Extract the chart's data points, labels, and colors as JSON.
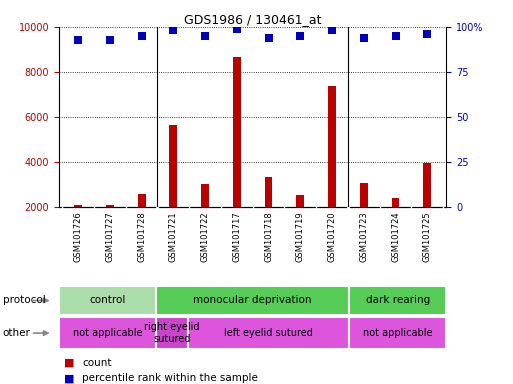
{
  "title": "GDS1986 / 130461_at",
  "samples": [
    "GSM101726",
    "GSM101727",
    "GSM101728",
    "GSM101721",
    "GSM101722",
    "GSM101717",
    "GSM101718",
    "GSM101719",
    "GSM101720",
    "GSM101723",
    "GSM101724",
    "GSM101725"
  ],
  "counts": [
    2100,
    2100,
    2600,
    5650,
    3050,
    8650,
    3350,
    2550,
    7400,
    3100,
    2400,
    3950
  ],
  "percentile_ranks": [
    93,
    93,
    95,
    98,
    95,
    99,
    94,
    95,
    98,
    94,
    95,
    96
  ],
  "ylim_left": [
    2000,
    10000
  ],
  "ylim_right": [
    0,
    100
  ],
  "bar_color": "#bb0000",
  "dot_color": "#0000bb",
  "protocol_groups": [
    {
      "label": "control",
      "start": 0,
      "end": 3,
      "color": "#aaddaa"
    },
    {
      "label": "monocular deprivation",
      "start": 3,
      "end": 9,
      "color": "#55cc55"
    },
    {
      "label": "dark rearing",
      "start": 9,
      "end": 12,
      "color": "#55cc55"
    }
  ],
  "other_groups": [
    {
      "label": "not applicable",
      "start": 0,
      "end": 3,
      "color": "#dd55dd"
    },
    {
      "label": "right eyelid\nsutured",
      "start": 3,
      "end": 4,
      "color": "#cc44cc"
    },
    {
      "label": "left eyelid sutured",
      "start": 4,
      "end": 9,
      "color": "#dd55dd"
    },
    {
      "label": "not applicable",
      "start": 9,
      "end": 12,
      "color": "#dd55dd"
    }
  ],
  "yticks_left": [
    2000,
    4000,
    6000,
    8000,
    10000
  ],
  "yticks_right": [
    0,
    25,
    50,
    75,
    100
  ],
  "legend_count_color": "#bb0000",
  "legend_percentile_color": "#0000bb",
  "bar_width": 0.25,
  "dot_size": 40,
  "background_color": "#ffffff",
  "plot_bg_color": "#ffffff",
  "xlabels_bg_color": "#cccccc",
  "group_separator_color": "#ffffff",
  "grid_color": "#000000",
  "grid_style": "dotted"
}
